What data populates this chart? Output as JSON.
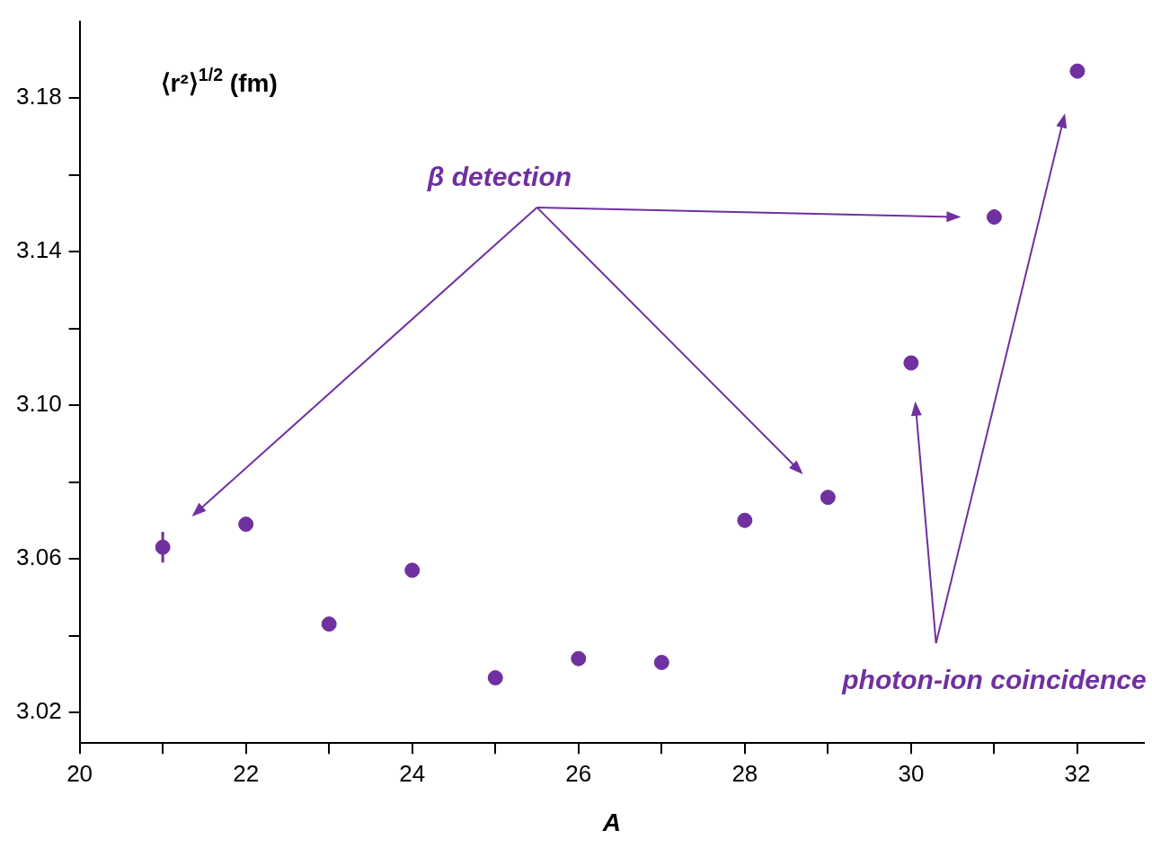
{
  "chart_data": {
    "type": "scatter",
    "ylabel": "⟨r²⟩$^{1/2}$ (fm)",
    "xlabel": "A",
    "x": [
      21,
      22,
      23,
      24,
      25,
      26,
      27,
      28,
      29,
      30,
      31,
      32
    ],
    "values": [
      3.063,
      3.069,
      3.043,
      3.057,
      3.029,
      3.034,
      3.033,
      3.07,
      3.076,
      3.111,
      3.149,
      3.187
    ],
    "errors": [
      0.004,
      null,
      null,
      null,
      null,
      null,
      null,
      null,
      null,
      null,
      0.002,
      null
    ],
    "color": "#7030a0",
    "marker": "circle",
    "grid": false,
    "legend": false,
    "xlim": [
      20,
      32.8
    ],
    "xticks": [
      20,
      {
        "value": 21,
        "label": null
      },
      22,
      {
        "value": 23,
        "label": null
      },
      24,
      {
        "value": 25,
        "label": null
      },
      26,
      {
        "value": 27,
        "label": null
      },
      28,
      {
        "value": 29,
        "label": null
      },
      30,
      {
        "value": 31,
        "label": null
      },
      32
    ],
    "ylim": [
      3.012,
      3.2
    ],
    "yticks": [
      3.02,
      {
        "value": 3.04,
        "label": null
      },
      3.06,
      {
        "value": 3.08,
        "label": null
      },
      {
        "value": 3.1,
        "label": "3.10"
      },
      {
        "value": 3.12,
        "label": null
      },
      3.14,
      {
        "value": 3.16,
        "label": null
      },
      3.18
    ],
    "annotations": [
      "β detection",
      "photon-ion coincidence"
    ]
  }
}
